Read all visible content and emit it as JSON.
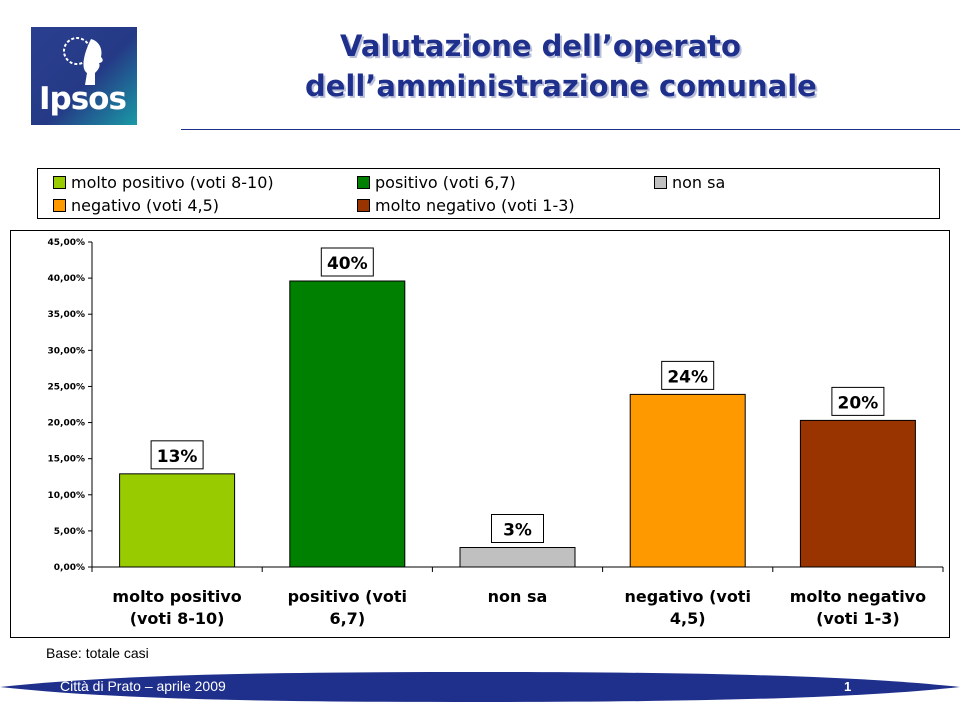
{
  "header": {
    "logo_text": "Ipsos",
    "title_line1": "Valutazione dell’operato",
    "title_line2": "dell’amministrazione comunale"
  },
  "legend": {
    "items": [
      {
        "label": "molto positivo (voti 8-10)",
        "color": "#99cc00"
      },
      {
        "label": "positivo (voti 6,7)",
        "color": "#008000"
      },
      {
        "label": "non sa",
        "color": "#c0c0c0"
      },
      {
        "label": "negativo (voti 4,5)",
        "color": "#ff9900"
      },
      {
        "label": "molto negativo (voti 1-3)",
        "color": "#993300"
      }
    ]
  },
  "chart_data": {
    "type": "bar",
    "categories": [
      [
        "molto positivo",
        "(voti 8-10)"
      ],
      [
        "positivo (voti",
        "6,7)"
      ],
      [
        "non sa"
      ],
      [
        "negativo (voti",
        "4,5)"
      ],
      [
        "molto negativo",
        "(voti 1-3)"
      ]
    ],
    "values": [
      13,
      40,
      3,
      24,
      20
    ],
    "bar_heights": [
      12.9,
      39.6,
      2.7,
      23.9,
      20.3
    ],
    "data_labels": [
      "13%",
      "40%",
      "3%",
      "24%",
      "20%"
    ],
    "colors": [
      "#99cc00",
      "#008000",
      "#c0c0c0",
      "#ff9900",
      "#993300"
    ],
    "yticks": [
      "0,00%",
      "5,00%",
      "10,00%",
      "15,00%",
      "20,00%",
      "25,00%",
      "30,00%",
      "35,00%",
      "40,00%",
      "45,00%"
    ],
    "ylim": [
      0,
      45
    ],
    "grid": false,
    "legend_position": "top"
  },
  "footer": {
    "base_note": "Base: totale casi",
    "source": "Città di Prato – aprile 2009",
    "page_number": "1"
  }
}
